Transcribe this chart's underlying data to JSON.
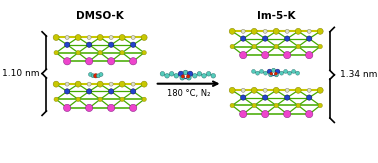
{
  "title_left": "DMSO-K",
  "title_right": "Im-5-K",
  "label_left": "1.10 nm",
  "label_right": "1.34 nm",
  "arrow_label": "180 °C, N₂",
  "bg_color": "#ffffff",
  "title_fontsize": 7.5,
  "label_fontsize": 6.5,
  "arrow_fontsize": 6.0,
  "color_yellow": "#c8c800",
  "color_green": "#44aa00",
  "color_blue": "#2244cc",
  "color_magenta": "#ee44cc",
  "color_cyan": "#55ccbb",
  "color_red": "#dd2200",
  "color_white_atom": "#e0e0cc",
  "color_dark": "#111111"
}
